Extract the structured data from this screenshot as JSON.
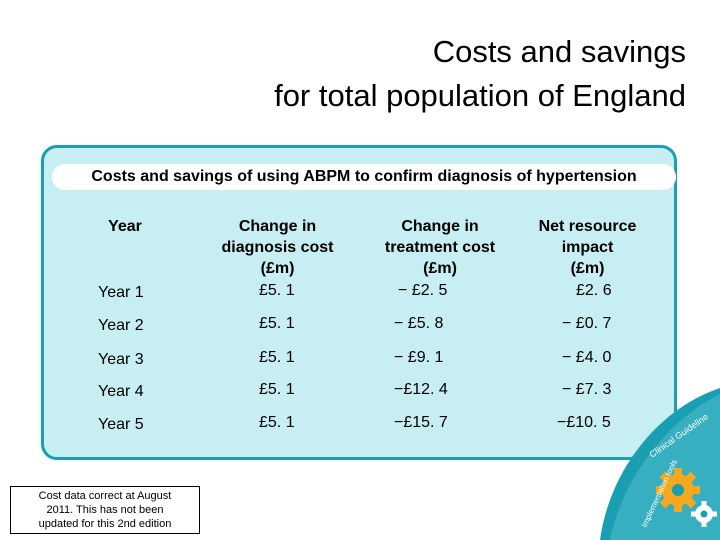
{
  "title_line1": "Costs and savings",
  "title_line2": "for total population of England",
  "subtitle": "Costs and savings of using ABPM to confirm diagnosis of hypertension",
  "table": {
    "headers": {
      "year": "Year",
      "diagnosis": [
        "Change in",
        "diagnosis cost",
        "(£m)"
      ],
      "treatment": [
        "Change in",
        "treatment cost",
        "(£m)"
      ],
      "net": [
        "Net resource",
        "impact",
        "(£m)"
      ]
    },
    "rows": [
      {
        "year": "Year 1",
        "diagnosis": "£5. 1",
        "treatment": "− £2. 5",
        "net": "£2. 6"
      },
      {
        "year": "Year 2",
        "diagnosis": "£5. 1",
        "treatment": "− £5. 8",
        "net": "− £0. 7"
      },
      {
        "year": "Year 3",
        "diagnosis": "£5. 1",
        "treatment": "− £9. 1",
        "net": "− £4. 0"
      },
      {
        "year": "Year 4",
        "diagnosis": "£5. 1",
        "treatment": "−£12. 4",
        "net": "− £7. 3"
      },
      {
        "year": "Year 5",
        "diagnosis": "£5. 1",
        "treatment": "−£15. 7",
        "net": "−£10. 5"
      }
    ]
  },
  "note": [
    "Cost data correct at August",
    "2011.  This has not been",
    "updated for this 2nd edition"
  ],
  "logo_text": "Clinical Guideline Implementation tools",
  "colors": {
    "panel_fill": "#c7eef3",
    "panel_border": "#1a9fb2",
    "logo_bg": "#1a9fb2"
  }
}
